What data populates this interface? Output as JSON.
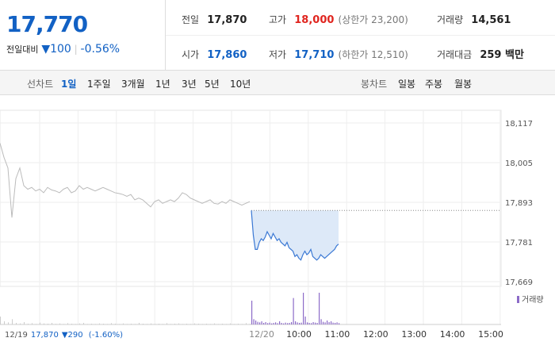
{
  "quote": {
    "price": "17,770",
    "change_label": "전일대비",
    "change": "100",
    "change_rate": "-0.56%"
  },
  "summary": [
    [
      {
        "label": "전일",
        "value": "17,870"
      },
      {
        "label": "고가",
        "value": "18,000",
        "note": "(상한가 23,200)"
      },
      {
        "label": "거래량",
        "value": "14,561"
      }
    ],
    [
      {
        "label": "시가",
        "value": "17,860"
      },
      {
        "label": "저가",
        "value": "17,710",
        "note": "(하한가 12,510)"
      },
      {
        "label": "거래대금",
        "value": "259 백만"
      }
    ]
  ],
  "tabs": {
    "line_label": "선차트",
    "line": [
      "1일",
      "1주일",
      "3개월",
      "1년",
      "3년",
      "5년",
      "10년"
    ],
    "candle_label": "봉차트",
    "candle": [
      "일봉",
      "주봉",
      "월봉"
    ]
  },
  "chart": {
    "ylim": [
      17669,
      18117
    ],
    "yticks": [
      {
        "value": 18117,
        "label": "18,117"
      },
      {
        "value": 18005,
        "label": "18,005"
      },
      {
        "value": 17893,
        "label": "17,893"
      },
      {
        "value": 17781,
        "label": "17,781"
      },
      {
        "value": 17669,
        "label": "17,669"
      }
    ],
    "xticks": [
      "10:00",
      "11:00",
      "12:00",
      "13:00",
      "14:00",
      "15:00"
    ],
    "day_label": "12/20",
    "volume_label": "거래량",
    "prev_day": {
      "date": "12/19",
      "close": "17,870",
      "change": "290",
      "rate": "(-1.60%)"
    },
    "reference": 17870,
    "previous": [
      18060,
      18020,
      17990,
      17850,
      17960,
      17990,
      17940,
      17930,
      17935,
      17925,
      17930,
      17920,
      17935,
      17928,
      17925,
      17920,
      17930,
      17935,
      17920,
      17925,
      17940,
      17930,
      17935,
      17930,
      17925,
      17930,
      17935,
      17930,
      17925,
      17920,
      17918,
      17915,
      17910,
      17915,
      17900,
      17905,
      17900,
      17890,
      17880,
      17895,
      17900,
      17890,
      17895,
      17900,
      17895,
      17905,
      17920,
      17915,
      17905,
      17900,
      17895,
      17890,
      17895,
      17900,
      17890,
      17888,
      17895,
      17890,
      17900,
      17895,
      17890,
      17885,
      17890,
      17895
    ],
    "today": [
      17870,
      17800,
      17760,
      17760,
      17780,
      17790,
      17785,
      17795,
      17810,
      17800,
      17790,
      17805,
      17795,
      17785,
      17790,
      17780,
      17775,
      17770,
      17780,
      17765,
      17760,
      17755,
      17740,
      17745,
      17735,
      17730,
      17745,
      17755,
      17745,
      17750,
      17760,
      17740,
      17735,
      17730,
      17735,
      17745,
      17740,
      17735,
      17740,
      17745,
      17750,
      17755,
      17760,
      17770,
      17775
    ],
    "previous_volume": [
      300,
      120,
      80,
      200,
      60,
      40,
      90,
      30,
      50,
      20,
      70,
      40,
      30,
      60,
      25,
      40,
      20,
      50,
      30,
      20,
      40,
      60,
      20,
      30,
      20,
      40,
      30,
      20,
      50,
      30,
      20,
      40,
      20,
      30,
      20,
      60,
      30,
      20,
      40,
      20,
      30,
      20,
      50,
      20,
      30,
      40,
      20,
      30,
      20,
      40,
      30,
      20,
      30,
      20,
      40,
      20,
      30,
      20,
      40,
      20,
      30,
      20,
      50,
      30
    ],
    "today_volume": [
      900,
      200,
      150,
      100,
      80,
      120,
      60,
      90,
      50,
      70,
      40,
      60,
      80,
      50,
      120,
      60,
      40,
      70,
      50,
      60,
      90,
      1000,
      120,
      80,
      60,
      70,
      1200,
      300,
      80,
      60,
      50,
      90,
      70,
      60,
      1200,
      200,
      100,
      80,
      150,
      90,
      120,
      70,
      60,
      80,
      50
    ]
  }
}
